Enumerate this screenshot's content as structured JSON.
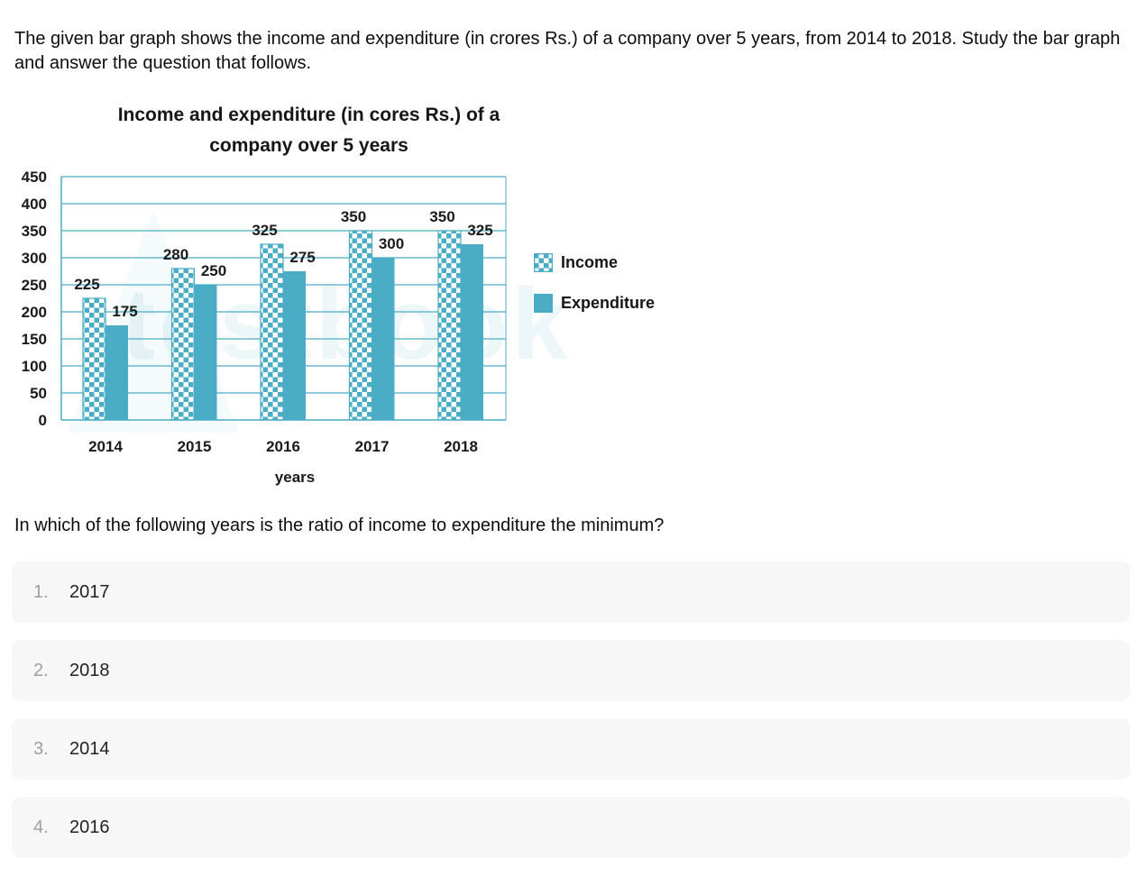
{
  "intro": "The given bar graph shows the income and expenditure (in crores Rs.) of a company over 5 years, from 2014 to 2018. Study the bar graph and answer the question that follows.",
  "watermark": "testbook",
  "chart_data": {
    "type": "bar",
    "title": "Income and expenditure (in cores Rs.) of a company over 5 years",
    "title_lines": [
      "Income and expenditure (in cores Rs.) of a",
      "company over 5 years"
    ],
    "categories": [
      "2014",
      "2015",
      "2016",
      "2017",
      "2018"
    ],
    "series": [
      {
        "name": "Income",
        "style": "checker",
        "values": [
          225,
          280,
          325,
          350,
          350
        ]
      },
      {
        "name": "Expenditure",
        "style": "solid",
        "values": [
          175,
          250,
          275,
          300,
          325
        ]
      }
    ],
    "xlabel": "years",
    "ylabel": "",
    "ylim": [
      0,
      450
    ],
    "ytick_step": 50,
    "grid": true,
    "data_labels": true,
    "legend_position": "right",
    "accent_color": "#4BACC6",
    "label_color": "#1a1a1a"
  },
  "question": "In which of the following years is the ratio of income to expenditure the minimum?",
  "options": [
    {
      "number": "1.",
      "label": "2017"
    },
    {
      "number": "2.",
      "label": "2018"
    },
    {
      "number": "3.",
      "label": "2014"
    },
    {
      "number": "4.",
      "label": "2016"
    }
  ]
}
